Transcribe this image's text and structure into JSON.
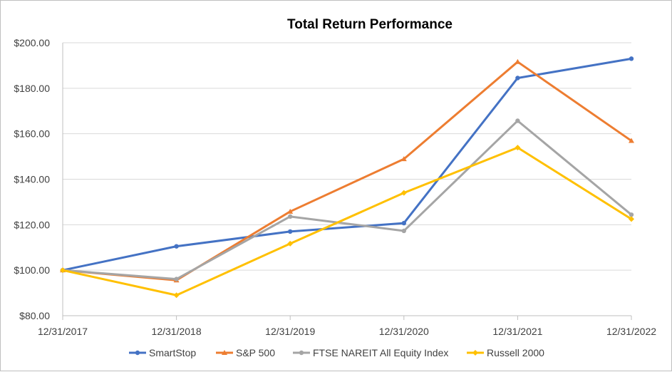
{
  "chart_data": {
    "type": "line",
    "title": "Total Return Performance",
    "xlabel": "",
    "ylabel": "",
    "x": [
      "12/31/2017",
      "12/31/2018",
      "12/31/2019",
      "12/31/2020",
      "12/31/2021",
      "12/31/2022"
    ],
    "y_ticks": [
      "$80.00",
      "$100.00",
      "$120.00",
      "$140.00",
      "$160.00",
      "$180.00",
      "$200.00"
    ],
    "ylim": [
      80,
      200
    ],
    "grid": true,
    "legend_position": "bottom",
    "series": [
      {
        "name": "SmartStop",
        "color": "#4472C4",
        "marker": "circle",
        "values": [
          100,
          110.5,
          117,
          120.7,
          184.5,
          193
        ]
      },
      {
        "name": "S&P 500",
        "color": "#ED7D31",
        "marker": "triangle",
        "values": [
          100,
          95.6,
          125.8,
          148.9,
          191.6,
          156.9
        ]
      },
      {
        "name": "FTSE NAREIT All Equity Index",
        "color": "#A5A5A5",
        "marker": "circle",
        "values": [
          100,
          96.1,
          123.6,
          117.3,
          165.7,
          124.4
        ]
      },
      {
        "name": "Russell 2000",
        "color": "#FFC000",
        "marker": "diamond",
        "values": [
          100,
          89,
          111.7,
          134,
          153.9,
          122.5
        ]
      }
    ]
  }
}
